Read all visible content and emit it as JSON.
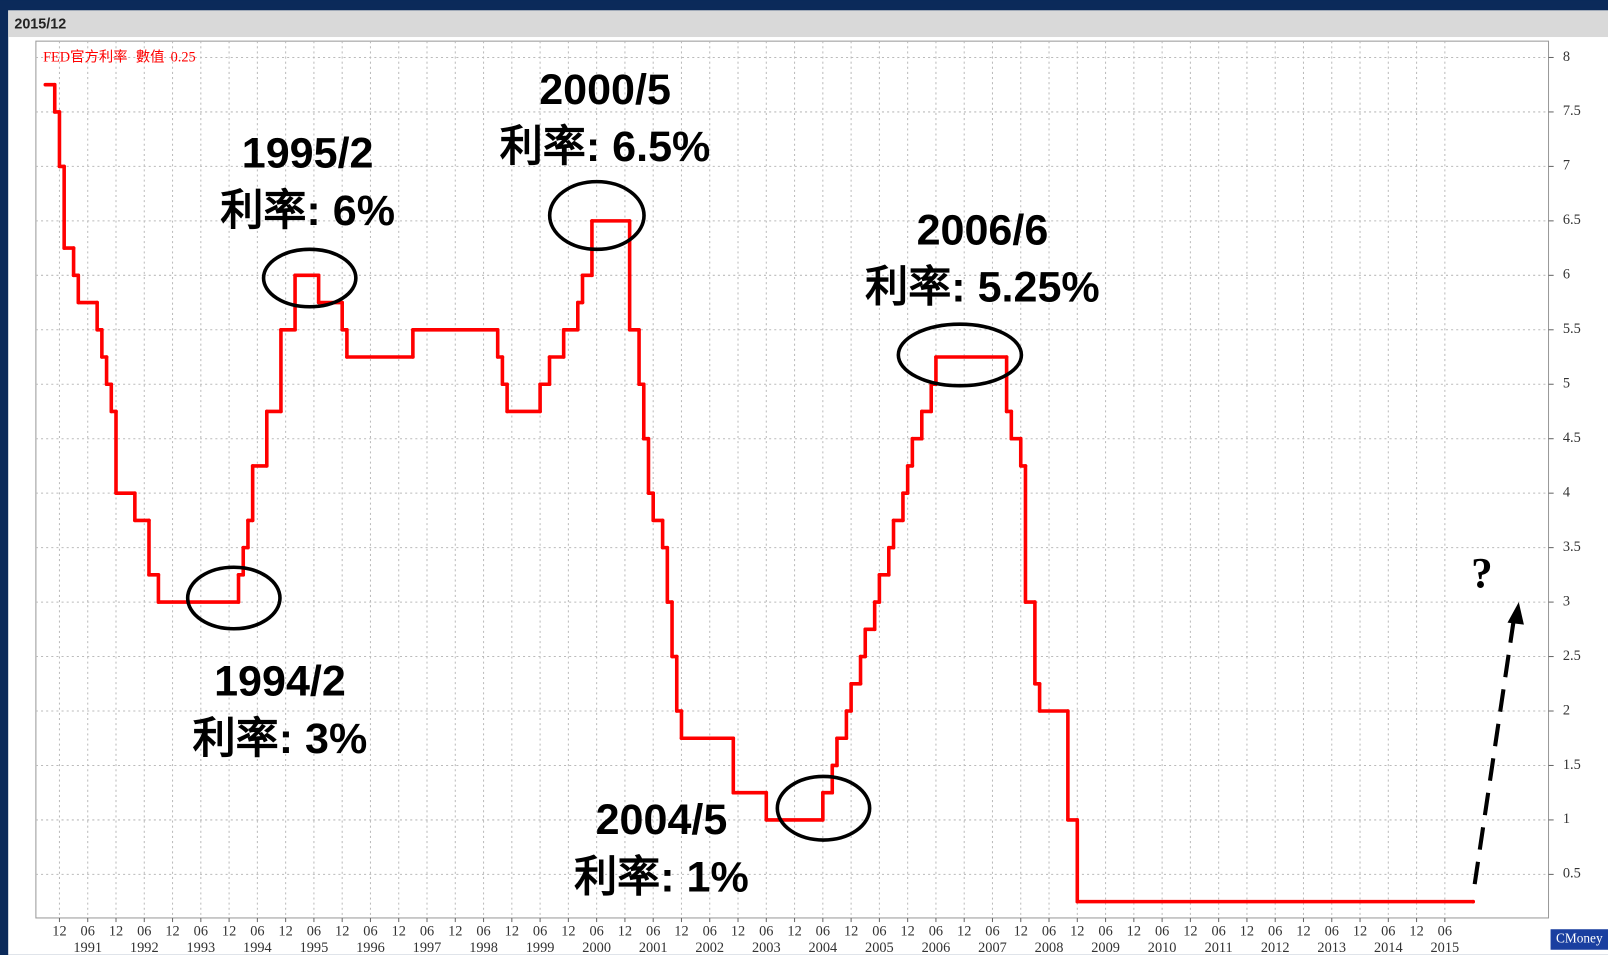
{
  "chart_data": {
    "type": "line",
    "step": true,
    "header": "2015/12",
    "watermark": "CMoney",
    "legend_label": "數值",
    "latest_value": 0.25,
    "series": [
      {
        "name": "FED官方利率",
        "color": "#ff0000",
        "x": [
          "1990/09",
          "1990/11",
          "1990/12",
          "1991/01",
          "1991/03",
          "1991/04",
          "1991/08",
          "1991/09",
          "1991/10",
          "1991/11",
          "1991/12",
          "1992/04",
          "1992/07",
          "1992/09",
          "1994/02",
          "1994/03",
          "1994/04",
          "1994/05",
          "1994/08",
          "1994/11",
          "1995/02",
          "1995/07",
          "1995/12",
          "1996/01",
          "1997/03",
          "1998/09",
          "1998/10",
          "1998/11",
          "1999/06",
          "1999/08",
          "1999/11",
          "2000/02",
          "2000/03",
          "2000/05",
          "2001/01",
          "2001/03",
          "2001/04",
          "2001/05",
          "2001/06",
          "2001/08",
          "2001/09",
          "2001/10",
          "2001/11",
          "2001/12",
          "2002/11",
          "2003/06",
          "2004/06",
          "2004/08",
          "2004/09",
          "2004/11",
          "2004/12",
          "2005/02",
          "2005/03",
          "2005/05",
          "2005/06",
          "2005/08",
          "2005/09",
          "2005/11",
          "2005/12",
          "2006/01",
          "2006/03",
          "2006/05",
          "2006/06",
          "2007/09",
          "2007/10",
          "2007/12",
          "2008/01",
          "2008/03",
          "2008/04",
          "2008/10",
          "2008/12",
          "2015/12"
        ],
        "values": [
          7.75,
          7.5,
          7,
          6.25,
          6,
          5.75,
          5.5,
          5.25,
          5,
          4.75,
          4,
          3.75,
          3.25,
          3,
          3.25,
          3.5,
          3.75,
          4.25,
          4.75,
          5.5,
          6,
          5.75,
          5.5,
          5.25,
          5.5,
          5.25,
          5,
          4.75,
          5,
          5.25,
          5.5,
          5.75,
          6,
          6.5,
          5.5,
          5,
          4.5,
          4,
          3.75,
          3.5,
          3,
          2.5,
          2,
          1.75,
          1.25,
          1,
          1.25,
          1.5,
          1.75,
          2,
          2.25,
          2.5,
          2.75,
          3,
          3.25,
          3.5,
          3.75,
          4,
          4.25,
          4.5,
          4.75,
          5,
          5.25,
          4.75,
          4.5,
          4.25,
          3,
          2.25,
          2,
          1,
          0.25,
          0.25
        ]
      }
    ],
    "xlim": [
      "1990/07",
      "2017/04"
    ],
    "ylim": [
      0.1,
      8.15
    ],
    "yticks": [
      0.5,
      1,
      1.5,
      2,
      2.5,
      3,
      3.5,
      4,
      4.5,
      5,
      5.5,
      6,
      6.5,
      7,
      7.5,
      8
    ],
    "xticks": [
      {
        "value": "1990/12",
        "label": "12"
      },
      {
        "value": "1991/06",
        "label": "06"
      },
      {
        "value": "1991/12",
        "label": "12"
      },
      {
        "value": "1992/06",
        "label": "06"
      },
      {
        "value": "1992/12",
        "label": "12"
      },
      {
        "value": "1993/06",
        "label": "06"
      },
      {
        "value": "1993/12",
        "label": "12"
      },
      {
        "value": "1994/06",
        "label": "06"
      },
      {
        "value": "1994/12",
        "label": "12"
      },
      {
        "value": "1995/06",
        "label": "06"
      },
      {
        "value": "1995/12",
        "label": "12"
      },
      {
        "value": "1996/06",
        "label": "06"
      },
      {
        "value": "1996/12",
        "label": "12"
      },
      {
        "value": "1997/06",
        "label": "06"
      },
      {
        "value": "1997/12",
        "label": "12"
      },
      {
        "value": "1998/06",
        "label": "06"
      },
      {
        "value": "1998/12",
        "label": "12"
      },
      {
        "value": "1999/06",
        "label": "06"
      },
      {
        "value": "1999/12",
        "label": "12"
      },
      {
        "value": "2000/06",
        "label": "06"
      },
      {
        "value": "2000/12",
        "label": "12"
      },
      {
        "value": "2001/06",
        "label": "06"
      },
      {
        "value": "2001/12",
        "label": "12"
      },
      {
        "value": "2002/06",
        "label": "06"
      },
      {
        "value": "2002/12",
        "label": "12"
      },
      {
        "value": "2003/06",
        "label": "06"
      },
      {
        "value": "2003/12",
        "label": "12"
      },
      {
        "value": "2004/06",
        "label": "06"
      },
      {
        "value": "2004/12",
        "label": "12"
      },
      {
        "value": "2005/06",
        "label": "06"
      },
      {
        "value": "2005/12",
        "label": "12"
      },
      {
        "value": "2006/06",
        "label": "06"
      },
      {
        "value": "2006/12",
        "label": "12"
      },
      {
        "value": "2007/06",
        "label": "06"
      },
      {
        "value": "2007/12",
        "label": "12"
      },
      {
        "value": "2008/06",
        "label": "06"
      },
      {
        "value": "2008/12",
        "label": "12"
      },
      {
        "value": "2009/06",
        "label": "06"
      },
      {
        "value": "2009/12",
        "label": "12"
      },
      {
        "value": "2010/06",
        "label": "06"
      },
      {
        "value": "2010/12",
        "label": "12"
      },
      {
        "value": "2011/06",
        "label": "06"
      },
      {
        "value": "2011/12",
        "label": "12"
      },
      {
        "value": "2012/06",
        "label": "06"
      },
      {
        "value": "2012/12",
        "label": "12"
      },
      {
        "value": "2013/06",
        "label": "06"
      },
      {
        "value": "2013/12",
        "label": "12"
      },
      {
        "value": "2014/06",
        "label": "06"
      },
      {
        "value": "2014/12",
        "label": "12"
      },
      {
        "value": "2015/06",
        "label": "06"
      }
    ],
    "year_labels": [
      {
        "value": "1991/06",
        "label": "1991"
      },
      {
        "value": "1992/06",
        "label": "1992"
      },
      {
        "value": "1993/06",
        "label": "1993"
      },
      {
        "value": "1994/06",
        "label": "1994"
      },
      {
        "value": "1995/06",
        "label": "1995"
      },
      {
        "value": "1996/06",
        "label": "1996"
      },
      {
        "value": "1997/06",
        "label": "1997"
      },
      {
        "value": "1998/06",
        "label": "1998"
      },
      {
        "value": "1999/06",
        "label": "1999"
      },
      {
        "value": "2000/06",
        "label": "2000"
      },
      {
        "value": "2001/06",
        "label": "2001"
      },
      {
        "value": "2002/06",
        "label": "2002"
      },
      {
        "value": "2003/06",
        "label": "2003"
      },
      {
        "value": "2004/06",
        "label": "2004"
      },
      {
        "value": "2005/06",
        "label": "2005"
      },
      {
        "value": "2006/06",
        "label": "2006"
      },
      {
        "value": "2007/06",
        "label": "2007"
      },
      {
        "value": "2008/06",
        "label": "2008"
      },
      {
        "value": "2009/06",
        "label": "2009"
      },
      {
        "value": "2010/06",
        "label": "2010"
      },
      {
        "value": "2011/06",
        "label": "2011"
      },
      {
        "value": "2012/06",
        "label": "2012"
      },
      {
        "value": "2013/06",
        "label": "2013"
      },
      {
        "value": "2014/06",
        "label": "2014"
      },
      {
        "value": "2015/06",
        "label": "2015"
      }
    ],
    "grid": true,
    "annotations": [
      {
        "lines": [
          "1995/2",
          "利率: 6%"
        ]
      },
      {
        "lines": [
          "2000/5",
          "利率: 6.5%"
        ]
      },
      {
        "lines": [
          "2006/6",
          "利率: 5.25%"
        ]
      },
      {
        "lines": [
          "1994/2",
          "利率: 3%"
        ]
      },
      {
        "lines": [
          "2004/5",
          "利率: 1%"
        ]
      },
      {
        "lines": [
          "?"
        ]
      }
    ]
  }
}
